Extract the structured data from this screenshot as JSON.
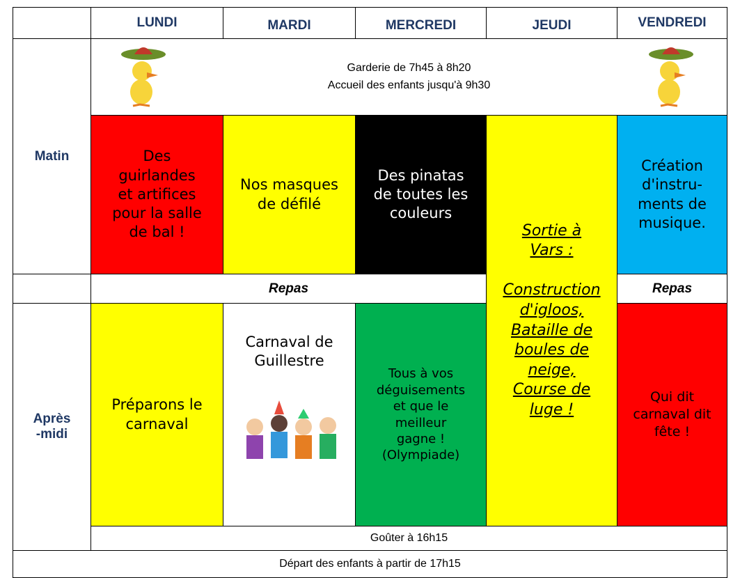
{
  "table": {
    "days": [
      "LUNDI",
      "MARDI",
      "MERCREDI",
      "JEUDI",
      "VENDREDI"
    ],
    "garderie": [
      "Garderie de 7h45 à 8h20",
      "Accueil des enfants jusqu'à 9h30"
    ],
    "matin_label": "Matin",
    "matin": [
      "Des\nguirlandes\net artifices\npour la salle\nde bal !",
      "Nos masques\nde défilé",
      "Des pinatas\nde toutes les\ncouleurs",
      "Création\nd'instru-\nments de\nmusique."
    ],
    "jeudi": "Sortie à\nVars :\n\nConstruction\nd'igloos,\nBataille de\nboules de\nneige,\nCourse de\nluge !",
    "repas": [
      "Repas",
      "Repas"
    ],
    "apres_midi_label": "Après\n-midi",
    "apres_midi": [
      "Préparons le\ncarnaval",
      "Carnaval de\nGuillestre",
      "Tous à vos\ndéguisements\net que le\nmeilleur\ngagne !\n(Olympiade)",
      "Qui dit\ncarnaval dit\nfête !"
    ],
    "gouter": "Goûter à 16h15",
    "depart": "Départ des enfants à partir de 17h15"
  }
}
